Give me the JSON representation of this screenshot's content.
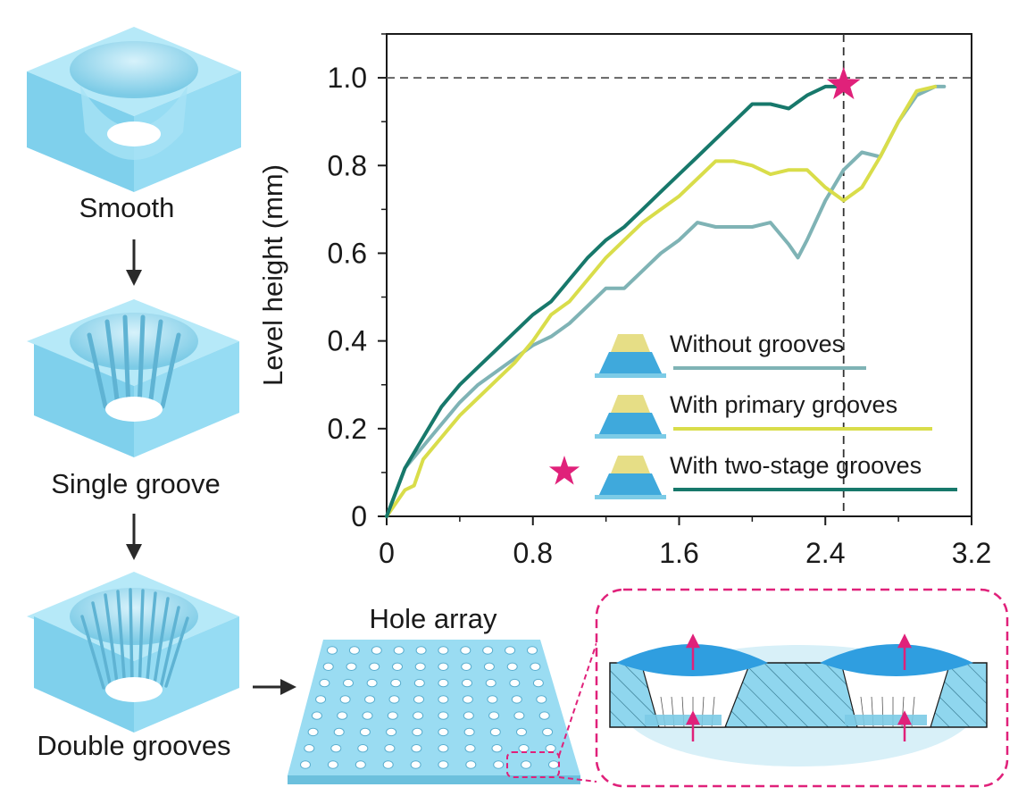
{
  "labels": {
    "smooth": "Smooth",
    "single_groove": "Single groove",
    "double_grooves": "Double grooves",
    "hole_array": "Hole array"
  },
  "colors": {
    "without": "#7fb3b5",
    "primary": "#d9dd4a",
    "two_stage": "#17786b",
    "accent": "#e0217a",
    "block": "#8fd6ee"
  },
  "chart_data": {
    "type": "line",
    "title": "",
    "xlabel": "",
    "ylabel": "Level height (mm)",
    "xlim": [
      0,
      3.2
    ],
    "ylim": [
      0,
      1.1
    ],
    "xticks": [
      "0",
      "0.8",
      "1.6",
      "2.4",
      "3.2"
    ],
    "yticks": [
      "0",
      "0.2",
      "0.4",
      "0.6",
      "0.8",
      "1.0"
    ],
    "reference_lines": {
      "y": 1.0,
      "x": 2.5
    },
    "series": [
      {
        "name": "Without grooves",
        "color": "#7fb3b5",
        "x": [
          0,
          0.1,
          0.2,
          0.3,
          0.4,
          0.5,
          0.6,
          0.7,
          0.8,
          0.9,
          1.0,
          1.1,
          1.2,
          1.3,
          1.4,
          1.5,
          1.6,
          1.7,
          1.8,
          1.9,
          2.0,
          2.1,
          2.2,
          2.25,
          2.3,
          2.4,
          2.5,
          2.6,
          2.7,
          2.8,
          2.9,
          3.0,
          3.05
        ],
        "y": [
          0,
          0.11,
          0.16,
          0.21,
          0.26,
          0.3,
          0.33,
          0.36,
          0.39,
          0.41,
          0.44,
          0.48,
          0.52,
          0.52,
          0.56,
          0.6,
          0.63,
          0.67,
          0.66,
          0.66,
          0.66,
          0.67,
          0.62,
          0.59,
          0.63,
          0.72,
          0.79,
          0.83,
          0.82,
          0.9,
          0.96,
          0.98,
          0.98
        ]
      },
      {
        "name": "With primary grooves",
        "color": "#d9dd4a",
        "x": [
          0,
          0.1,
          0.15,
          0.2,
          0.3,
          0.4,
          0.5,
          0.6,
          0.7,
          0.8,
          0.9,
          1.0,
          1.1,
          1.2,
          1.3,
          1.4,
          1.5,
          1.6,
          1.7,
          1.8,
          1.9,
          2.0,
          2.1,
          2.2,
          2.3,
          2.4,
          2.5,
          2.6,
          2.7,
          2.8,
          2.9,
          3.0
        ],
        "y": [
          0,
          0.06,
          0.07,
          0.13,
          0.18,
          0.23,
          0.27,
          0.31,
          0.35,
          0.4,
          0.46,
          0.49,
          0.54,
          0.59,
          0.63,
          0.67,
          0.7,
          0.73,
          0.77,
          0.81,
          0.81,
          0.8,
          0.78,
          0.79,
          0.79,
          0.75,
          0.72,
          0.75,
          0.82,
          0.9,
          0.97,
          0.98
        ]
      },
      {
        "name": "With two-stage grooves",
        "color": "#17786b",
        "x": [
          0,
          0.1,
          0.2,
          0.3,
          0.4,
          0.5,
          0.6,
          0.7,
          0.8,
          0.9,
          1.0,
          1.1,
          1.2,
          1.3,
          1.4,
          1.5,
          1.6,
          1.7,
          1.8,
          1.9,
          2.0,
          2.1,
          2.2,
          2.3,
          2.4,
          2.5
        ],
        "y": [
          0,
          0.11,
          0.18,
          0.25,
          0.3,
          0.34,
          0.38,
          0.42,
          0.46,
          0.49,
          0.54,
          0.59,
          0.63,
          0.66,
          0.7,
          0.74,
          0.78,
          0.82,
          0.86,
          0.9,
          0.94,
          0.94,
          0.93,
          0.96,
          0.98,
          0.98
        ]
      }
    ]
  }
}
